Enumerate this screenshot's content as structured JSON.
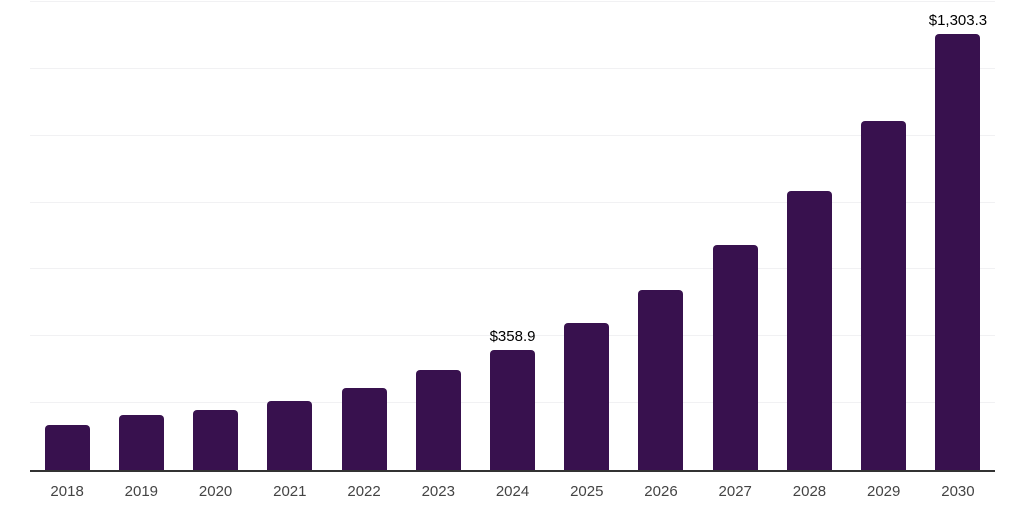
{
  "chart_data": {
    "type": "bar",
    "title": "",
    "xlabel": "",
    "ylabel": "",
    "categories": [
      "2018",
      "2019",
      "2020",
      "2021",
      "2022",
      "2023",
      "2024",
      "2025",
      "2026",
      "2027",
      "2028",
      "2029",
      "2030"
    ],
    "values": [
      136,
      166,
      180,
      207,
      246,
      298,
      358.9,
      440,
      540,
      672,
      836,
      1044,
      1303.3
    ],
    "data_labels": {
      "2024": "$358.9",
      "2030": "$1,303.3"
    },
    "ylim": [
      0,
      1400
    ],
    "gridline_step": 200,
    "grid": true,
    "legend": "none",
    "y_axis_labels_visible": false,
    "colors": {
      "bar": "#38114E",
      "gridline": "#f1f1f3",
      "axis_line": "#333333",
      "data_label": "#000000",
      "tick_label": "#444444",
      "background": "#ffffff"
    }
  }
}
